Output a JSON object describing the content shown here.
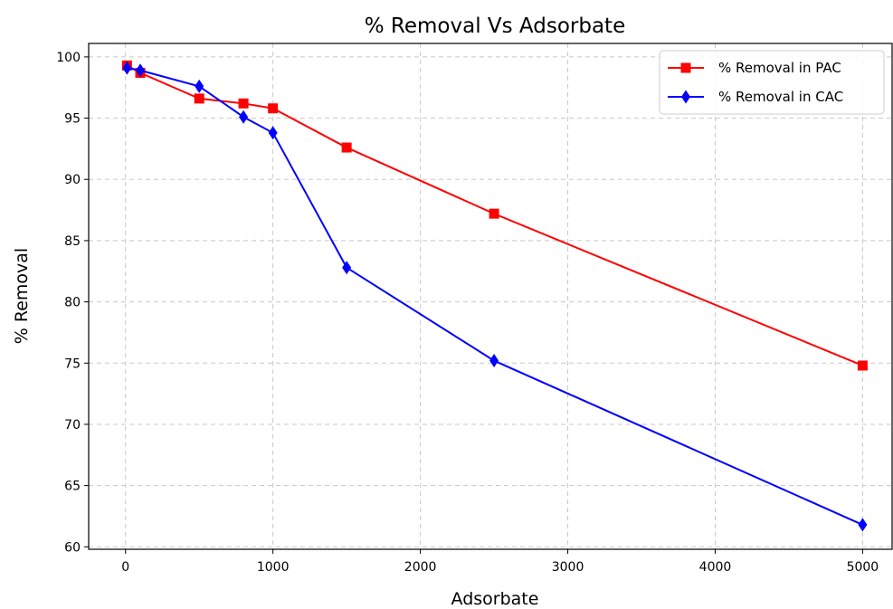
{
  "chart_data": {
    "type": "line",
    "title": "% Removal Vs Adsorbate",
    "xlabel": "Adsorbate",
    "ylabel": "% Removal",
    "xlim": [
      -250,
      5200
    ],
    "ylim": [
      59.8,
      101.1
    ],
    "xticks": [
      0,
      1000,
      2000,
      3000,
      4000,
      5000
    ],
    "yticks": [
      60,
      65,
      70,
      75,
      80,
      85,
      90,
      95,
      100
    ],
    "grid": true,
    "legend_position": "top-right",
    "series": [
      {
        "name": "% Removal in PAC",
        "color": "#ff0000",
        "marker": "square",
        "x": [
          10,
          100,
          500,
          800,
          1000,
          1500,
          2500,
          5000
        ],
        "y": [
          99.3,
          98.7,
          96.6,
          96.2,
          95.8,
          92.6,
          87.2,
          74.8
        ]
      },
      {
        "name": "% Removal in CAC",
        "color": "#0000ff",
        "marker": "diamond",
        "x": [
          10,
          100,
          500,
          800,
          1000,
          1500,
          2500,
          5000
        ],
        "y": [
          99.1,
          98.9,
          97.6,
          95.1,
          93.8,
          82.8,
          75.2,
          61.8
        ]
      }
    ]
  }
}
